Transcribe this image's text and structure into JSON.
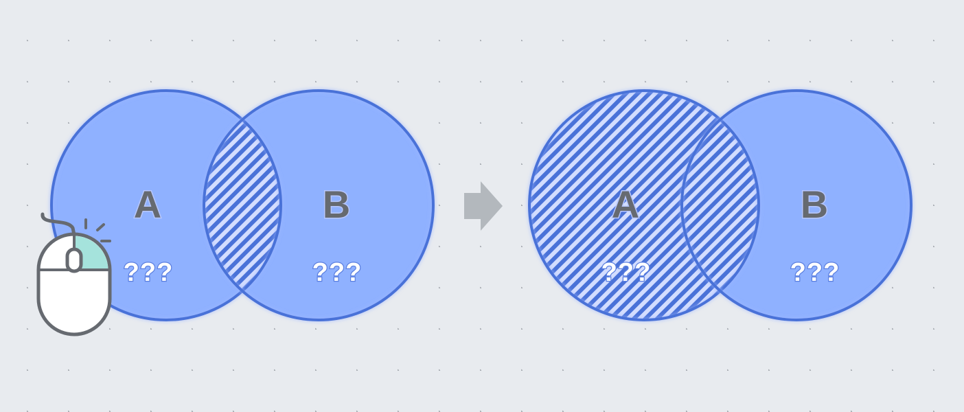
{
  "before": {
    "set_a": {
      "label": "A",
      "value": "???"
    },
    "set_b": {
      "label": "B",
      "value": "???"
    },
    "highlighted_region": "intersection"
  },
  "after": {
    "set_a": {
      "label": "A",
      "value": "???"
    },
    "set_b": {
      "label": "B",
      "value": "???"
    },
    "highlighted_region": "set-a"
  },
  "colors": {
    "background": "#e8ebef",
    "circle_fill": "#8fb1ff",
    "circle_stroke": "#4a72d8",
    "hatch": "#ffffff",
    "arrow": "#b3b8bd",
    "mouse_button": "#a5e3dc"
  },
  "icons": {
    "pointer": "mouse-icon",
    "transition": "arrow-right-icon"
  }
}
